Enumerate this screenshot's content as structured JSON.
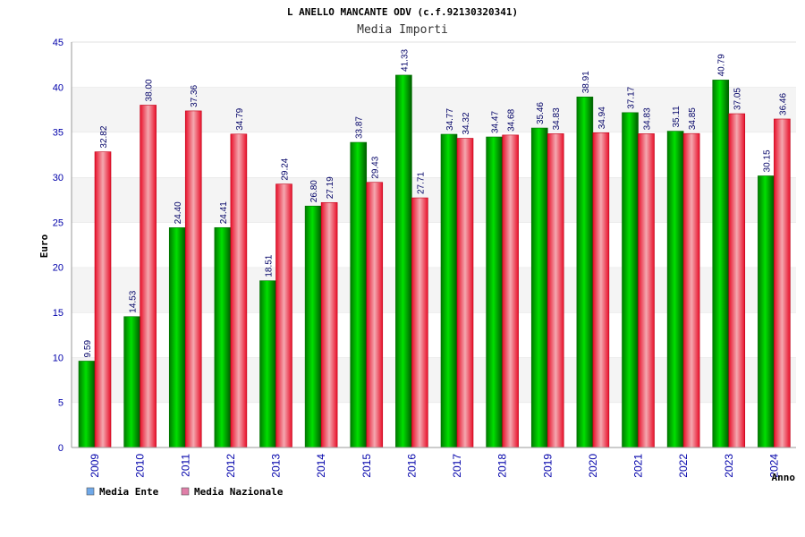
{
  "chart_data": {
    "type": "bar",
    "title": "L ANELLO MANCANTE ODV (c.f.92130320341)",
    "subtitle": "Media Importi",
    "xlabel": "Anno",
    "ylabel": "Euro",
    "ylim": [
      0,
      45
    ],
    "yticks": [
      "0",
      "5",
      "10",
      "15",
      "20",
      "25",
      "30",
      "35",
      "40",
      "45"
    ],
    "grid": "horizontal bands",
    "legend_position": "bottom-left",
    "categories": [
      "2009",
      "2010",
      "2011",
      "2012",
      "2013",
      "2014",
      "2015",
      "2016",
      "2017",
      "2018",
      "2019",
      "2020",
      "2021",
      "2022",
      "2023",
      "2024"
    ],
    "series": [
      {
        "name": "Media Ente",
        "color": "#00c000",
        "legend_color": "#6fa8e8",
        "values": [
          9.59,
          14.53,
          24.4,
          24.41,
          18.51,
          26.8,
          33.87,
          41.33,
          34.77,
          34.47,
          35.46,
          38.91,
          37.17,
          35.11,
          40.79,
          30.15
        ],
        "labels": [
          "9.59",
          "14.53",
          "24.40",
          "24.41",
          "18.51",
          "26.80",
          "33.87",
          "41.33",
          "34.77",
          "34.47",
          "35.46",
          "38.91",
          "37.17",
          "35.11",
          "40.79",
          "30.15"
        ]
      },
      {
        "name": "Media Nazionale",
        "color": "#e8202e",
        "legend_color": "#e07ea8",
        "values": [
          32.82,
          38.0,
          37.36,
          34.79,
          29.24,
          27.19,
          29.43,
          27.71,
          34.32,
          34.68,
          34.83,
          34.94,
          34.83,
          34.85,
          37.05,
          36.46
        ],
        "labels": [
          "32.82",
          "38.00",
          "37.36",
          "34.79",
          "29.24",
          "27.19",
          "29.43",
          "27.71",
          "34.32",
          "34.68",
          "34.83",
          "34.94",
          "34.83",
          "34.85",
          "37.05",
          "36.46"
        ]
      }
    ]
  }
}
